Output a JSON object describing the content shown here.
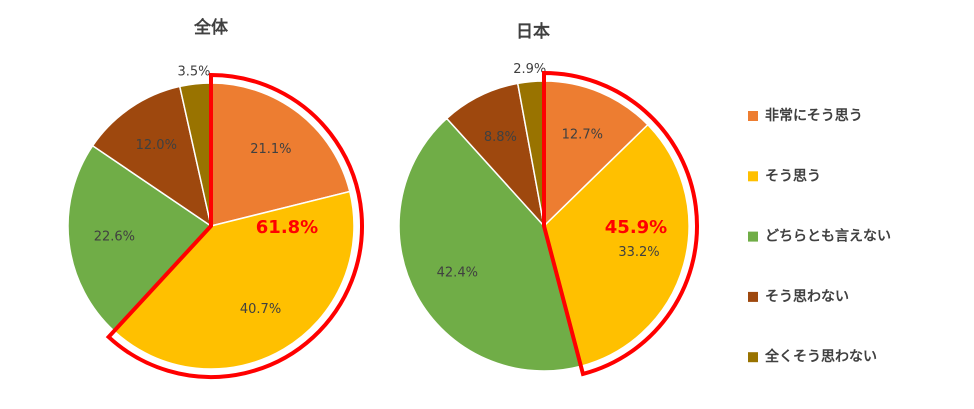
{
  "chart_data": [
    {
      "type": "pie",
      "title": "全体",
      "categories": [
        "非常にそう思う",
        "そう思う",
        "どちらとも言えない",
        "そう思わない",
        "全くそう思わない"
      ],
      "colors": [
        "#ed7d31",
        "#ffc000",
        "#70ad47",
        "#9e480e",
        "#997300"
      ],
      "values": [
        21.1,
        40.7,
        22.6,
        12.0,
        3.5
      ],
      "value_labels": [
        "21.1%",
        "40.7%",
        "22.6%",
        "12.0%",
        "3.5%"
      ],
      "annotation": "61.8%"
    },
    {
      "type": "pie",
      "title": "日本",
      "values": [
        12.7,
        33.2,
        42.4,
        8.8,
        2.9
      ],
      "value_labels": [
        "12.7%",
        "33.2%",
        "42.4%",
        "8.8%",
        "2.9%"
      ],
      "annotation": "45.9%"
    }
  ]
}
